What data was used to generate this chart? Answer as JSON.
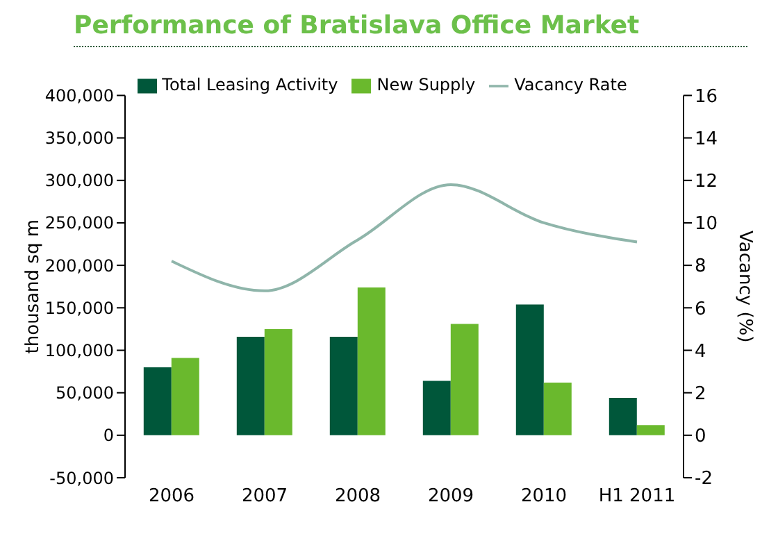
{
  "chart_data": {
    "type": "bar",
    "title": "Performance of Bratislava Office Market",
    "ylabel": "thousand sq m",
    "y2label": "Vacancy (%)",
    "categories": [
      "2006",
      "2007",
      "2008",
      "2009",
      "2010",
      "H1 2011"
    ],
    "series": [
      {
        "name": "Total Leasing Activity",
        "color": "#00573a",
        "values": [
          80000,
          116000,
          116000,
          64000,
          154000,
          44000
        ]
      },
      {
        "name": "New Supply",
        "color": "#6ab92d",
        "values": [
          91000,
          125000,
          174000,
          131000,
          62000,
          12000
        ]
      },
      {
        "name": "Vacancy Rate",
        "type": "line",
        "axis": "y2",
        "color": "#8fb5aa",
        "values": [
          8.2,
          6.8,
          9.2,
          11.8,
          10.0,
          9.1
        ]
      }
    ],
    "ylim": [
      -50000,
      400000
    ],
    "yticks": [
      {
        "value": -50000,
        "label": "-50,000"
      },
      0,
      {
        "value": 50000,
        "label": "50,000"
      },
      {
        "value": 100000,
        "label": "100,000"
      },
      {
        "value": 150000,
        "label": "150,000"
      },
      {
        "value": 200000,
        "label": "200,000"
      },
      {
        "value": 250000,
        "label": "250,000"
      },
      {
        "value": 300000,
        "label": "300,000"
      },
      {
        "value": 350000,
        "label": "350,000"
      },
      {
        "value": 400000,
        "label": "400,000"
      }
    ],
    "y2lim": [
      -2,
      16
    ],
    "y2ticks": [
      -2,
      0,
      2,
      4,
      6,
      8,
      10,
      12,
      14,
      16
    ],
    "legend": "top",
    "grid": false,
    "marker": "none",
    "line_style": "solid"
  }
}
